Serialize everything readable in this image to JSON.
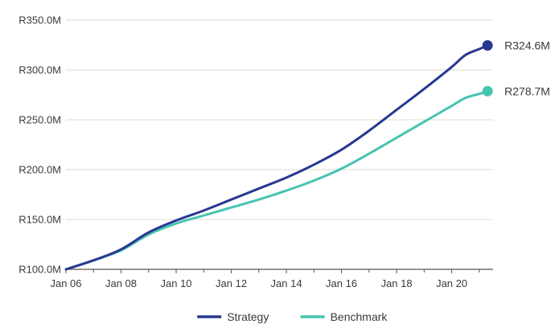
{
  "chart_data": {
    "type": "line",
    "y_ticks": [
      {
        "value": 100,
        "label": "R100.0M"
      },
      {
        "value": 150,
        "label": "R150.0M"
      },
      {
        "value": 200,
        "label": "R200.0M"
      },
      {
        "value": 250,
        "label": "R250.0M"
      },
      {
        "value": 300,
        "label": "R300.0M"
      },
      {
        "value": 350,
        "label": "R350.0M"
      }
    ],
    "x_ticks": [
      {
        "value": 2006.0,
        "label": "Jan 06"
      },
      {
        "value": 2008.0,
        "label": "Jan 08"
      },
      {
        "value": 2010.0,
        "label": "Jan 10"
      },
      {
        "value": 2012.0,
        "label": "Jan 12"
      },
      {
        "value": 2014.0,
        "label": "Jan 14"
      },
      {
        "value": 2016.0,
        "label": "Jan 16"
      },
      {
        "value": 2018.0,
        "label": "Jan 18"
      },
      {
        "value": 2020.0,
        "label": "Jan 20"
      }
    ],
    "xlim": [
      2006.0,
      2021.5
    ],
    "ylim": [
      100,
      350
    ],
    "grid": true,
    "legend_position": "bottom",
    "series": [
      {
        "name": "Strategy",
        "color": "#283891",
        "end_label": "R324.6M",
        "points": [
          [
            2006.0,
            100
          ],
          [
            2007.0,
            109
          ],
          [
            2008.0,
            120
          ],
          [
            2009.0,
            137
          ],
          [
            2010.0,
            149
          ],
          [
            2011.0,
            159
          ],
          [
            2012.0,
            170
          ],
          [
            2013.0,
            181
          ],
          [
            2014.0,
            192
          ],
          [
            2015.0,
            205
          ],
          [
            2016.0,
            220
          ],
          [
            2017.0,
            239
          ],
          [
            2018.0,
            260
          ],
          [
            2019.0,
            281
          ],
          [
            2020.0,
            303
          ],
          [
            2020.5,
            315
          ],
          [
            2021.0,
            321
          ],
          [
            2021.3,
            324.6
          ]
        ]
      },
      {
        "name": "Benchmark",
        "color": "#47c4b0",
        "end_label": "R278.7M",
        "points": [
          [
            2006.0,
            100
          ],
          [
            2007.0,
            109
          ],
          [
            2008.0,
            119
          ],
          [
            2009.0,
            135
          ],
          [
            2010.0,
            146
          ],
          [
            2011.0,
            154
          ],
          [
            2012.0,
            162
          ],
          [
            2013.0,
            170
          ],
          [
            2014.0,
            179
          ],
          [
            2015.0,
            189
          ],
          [
            2016.0,
            201
          ],
          [
            2017.0,
            216
          ],
          [
            2018.0,
            232
          ],
          [
            2019.0,
            248
          ],
          [
            2020.0,
            264
          ],
          [
            2020.5,
            272
          ],
          [
            2021.0,
            276
          ],
          [
            2021.3,
            278.7
          ]
        ]
      }
    ]
  }
}
